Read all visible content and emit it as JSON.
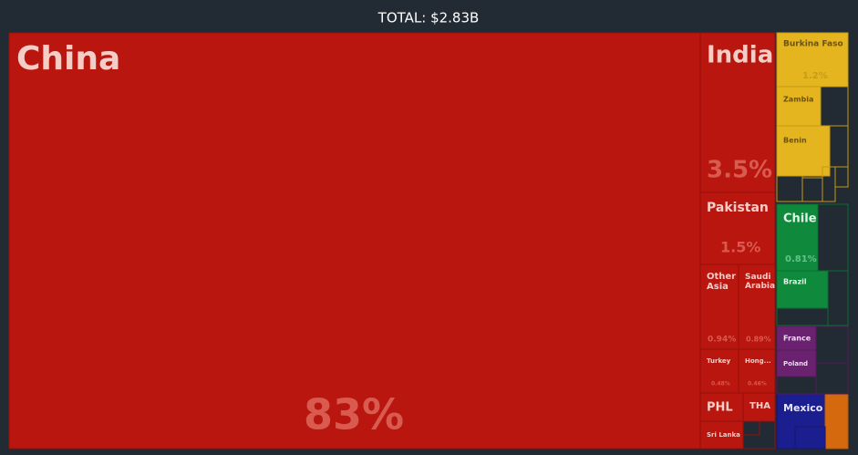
{
  "chart_data": {
    "type": "treemap",
    "title": "TOTAL: $2.83B",
    "categories": [
      "China",
      "India",
      "Pakistan",
      "Other Asia",
      "Saudi Arabia",
      "Turkey",
      "Hong...",
      "PHL",
      "THA",
      "Sri Lanka",
      "Burkina Faso",
      "Zambia",
      "Benin",
      "Chile",
      "Brazil",
      "France",
      "Poland",
      "Mexico"
    ],
    "values": [
      83,
      3.5,
      1.5,
      0.94,
      0.89,
      0.48,
      0.46,
      0.35,
      0.3,
      0.2,
      1.2,
      0.6,
      0.5,
      0.81,
      0.45,
      0.25,
      0.2,
      0.3
    ],
    "value_labels": [
      "83%",
      "3.5%",
      "1.5%",
      "0.94%",
      "0.89%",
      "0.48%",
      "0.46%",
      null,
      null,
      null,
      "1.2%",
      null,
      null,
      "0.81%",
      null,
      null,
      null,
      null
    ],
    "colors": [
      "#b8160e",
      "#b8160e",
      "#b8160e",
      "#b8160e",
      "#b8160e",
      "#b8160e",
      "#b8160e",
      "#b8160e",
      "#b8160e",
      "#b8160e",
      "#e4b51f",
      "#e4b51f",
      "#e4b51f",
      "#0f8a3c",
      "#0f8a3c",
      "#6a2170",
      "#6a2170",
      "#1b1e8e"
    ]
  }
}
